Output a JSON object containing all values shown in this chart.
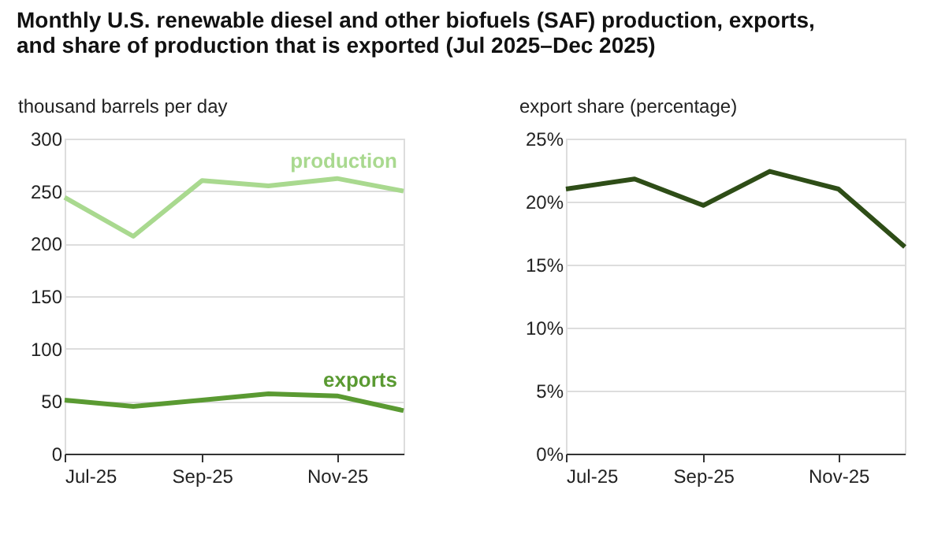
{
  "chart_data": [
    {
      "type": "line",
      "title": "Monthly U.S. renewable diesel and other biofuels (SAF) production, exports, and share of production that is exported (Jul 2025–Dec 2025)",
      "ylabel": "thousand barrels per day",
      "x": [
        "2025-07",
        "2025-08",
        "2025-09",
        "2025-10",
        "2025-11",
        "2025-12"
      ],
      "series": [
        {
          "name": "production",
          "color": "#a9d98f",
          "values": [
            244,
            207,
            260,
            255,
            262,
            250
          ]
        },
        {
          "name": "exports",
          "color": "#5a9a32",
          "values": [
            51,
            45,
            51,
            57,
            55,
            41
          ]
        }
      ],
      "xlim": [
        "2025-07",
        "2025-12"
      ],
      "xticks": [
        {
          "value": "2025-07",
          "label": "Jul-25"
        },
        {
          "value": "2025-09",
          "label": "Sep-25"
        },
        {
          "value": "2025-11",
          "label": "Nov-25"
        }
      ],
      "ylim": [
        0,
        300
      ],
      "yticks": [
        0,
        50,
        100,
        150,
        200,
        250,
        300
      ],
      "grid": "y",
      "legend": false,
      "marker": "none",
      "line_style": "solid"
    },
    {
      "type": "line",
      "ylabel": "export share (percentage)",
      "x": [
        "2025-07",
        "2025-08",
        "2025-09",
        "2025-10",
        "2025-11",
        "2025-12"
      ],
      "series": [
        {
          "color": "#2e4d17",
          "values": [
            21.0,
            21.8,
            19.7,
            22.4,
            21.0,
            16.4
          ]
        }
      ],
      "xlim": [
        "2025-07",
        "2025-12"
      ],
      "xticks": [
        {
          "value": "2025-07",
          "label": "Jul-25"
        },
        {
          "value": "2025-09",
          "label": "Sep-25"
        },
        {
          "value": "2025-11",
          "label": "Nov-25"
        }
      ],
      "ylim": [
        0,
        25
      ],
      "yticks": [
        {
          "value": 0,
          "label": "0%"
        },
        {
          "value": 5,
          "label": "5%"
        },
        {
          "value": 10,
          "label": "10%"
        },
        {
          "value": 15,
          "label": "15%"
        },
        {
          "value": 20,
          "label": "20%"
        },
        {
          "value": 25,
          "label": "25%"
        }
      ],
      "grid": "y",
      "legend": false,
      "marker": "none",
      "line_style": "solid"
    }
  ]
}
